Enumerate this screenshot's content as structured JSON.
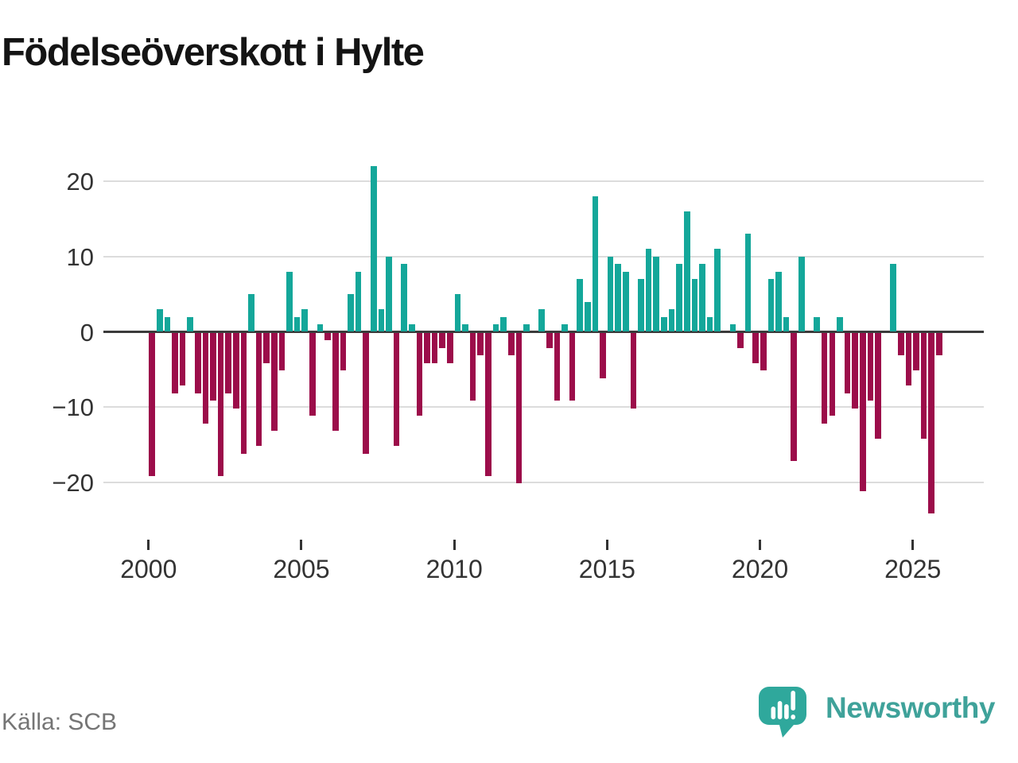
{
  "title": "Födelseöverskott i Hylte",
  "source": "Källa: SCB",
  "logo": {
    "text": "Newsworthy",
    "icon": "newsworthy-bar-chart-speech-bubble"
  },
  "colors": {
    "positive_bar": "#14a79a",
    "negative_bar": "#9c0d4a",
    "axis": "#3b3b3b",
    "grid": "#dcdcdc",
    "tick_text": "#333333",
    "source_text": "#757575",
    "logo_teal": "#3fa29a",
    "background": "#ffffff"
  },
  "chart_data": {
    "type": "bar",
    "title": "Födelseöverskott i Hylte",
    "xlabel": "",
    "ylabel": "",
    "frequency": "quarterly",
    "ylim": [
      -26,
      23.5
    ],
    "grid": "horizontal",
    "legend": "none",
    "yticks": [
      "20",
      "10",
      "0",
      "−10",
      "−20"
    ],
    "ytick_values": [
      20,
      10,
      0,
      -10,
      -20
    ],
    "xticks": [
      "2000",
      "2005",
      "2010",
      "2015",
      "2020",
      "2025"
    ],
    "xtick_values": [
      2000,
      2005,
      2010,
      2015,
      2020,
      2025
    ],
    "series": [
      {
        "year": 2000,
        "quarters": [
          -19,
          3,
          2,
          -8
        ]
      },
      {
        "year": 2001,
        "quarters": [
          -7,
          2,
          -8,
          -12
        ]
      },
      {
        "year": 2002,
        "quarters": [
          -9,
          -19,
          -8,
          -10
        ]
      },
      {
        "year": 2003,
        "quarters": [
          -16,
          5,
          -15,
          -4
        ]
      },
      {
        "year": 2004,
        "quarters": [
          -13,
          -5,
          8,
          2
        ]
      },
      {
        "year": 2005,
        "quarters": [
          3,
          -11,
          1,
          -1
        ]
      },
      {
        "year": 2006,
        "quarters": [
          -13,
          -5,
          5,
          8
        ]
      },
      {
        "year": 2007,
        "quarters": [
          -16,
          22,
          3,
          10
        ]
      },
      {
        "year": 2008,
        "quarters": [
          -15,
          9,
          1,
          -11
        ]
      },
      {
        "year": 2009,
        "quarters": [
          -4,
          -4,
          -2,
          -4
        ]
      },
      {
        "year": 2010,
        "quarters": [
          5,
          1,
          -9,
          -3
        ]
      },
      {
        "year": 2011,
        "quarters": [
          -19,
          1,
          2,
          -3
        ]
      },
      {
        "year": 2012,
        "quarters": [
          -20,
          1,
          0,
          3
        ]
      },
      {
        "year": 2013,
        "quarters": [
          -2,
          -9,
          1,
          -9
        ]
      },
      {
        "year": 2014,
        "quarters": [
          7,
          4,
          18,
          -6
        ]
      },
      {
        "year": 2015,
        "quarters": [
          10,
          9,
          8,
          -10
        ]
      },
      {
        "year": 2016,
        "quarters": [
          7,
          11,
          10,
          2
        ]
      },
      {
        "year": 2017,
        "quarters": [
          3,
          9,
          16,
          7
        ]
      },
      {
        "year": 2018,
        "quarters": [
          9,
          2,
          11,
          0
        ]
      },
      {
        "year": 2019,
        "quarters": [
          1,
          -2,
          13,
          -4
        ]
      },
      {
        "year": 2020,
        "quarters": [
          -5,
          7,
          8,
          2
        ]
      },
      {
        "year": 2021,
        "quarters": [
          -17,
          10,
          0,
          2
        ]
      },
      {
        "year": 2022,
        "quarters": [
          -12,
          -11,
          2,
          -8
        ]
      },
      {
        "year": 2023,
        "quarters": [
          -10,
          -21,
          -9,
          -14
        ]
      },
      {
        "year": 2024,
        "quarters": [
          0,
          9,
          -3,
          -7
        ]
      },
      {
        "year": 2025,
        "quarters": [
          -5,
          -14,
          -24,
          -3
        ]
      }
    ]
  }
}
